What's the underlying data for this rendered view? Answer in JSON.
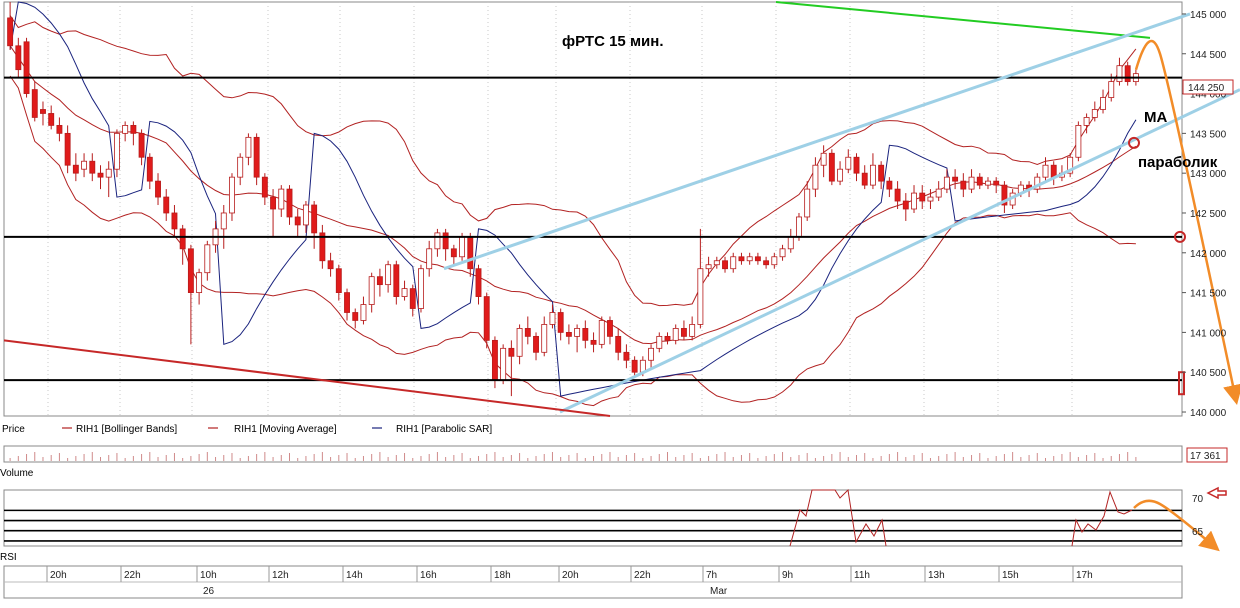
{
  "chart_data": {
    "type": "candlestick",
    "title": "фРТС   15 мин.",
    "price_panel": {
      "ylim": [
        139950,
        145150
      ],
      "y_ticks": [
        "145 000",
        "144 500",
        "144 000",
        "143 500",
        "143 000",
        "142 500",
        "142 000",
        "141 500",
        "141 000",
        "140 500",
        "140 000"
      ],
      "y_tick_values": [
        145000,
        144500,
        144000,
        143500,
        143000,
        142500,
        142000,
        141500,
        141000,
        140500,
        140000
      ],
      "last_price_label": "144 250",
      "last_price": 144250,
      "legend": [
        {
          "name": "Price",
          "color": "#000000"
        },
        {
          "name": "RIH1 [Bollinger Bands]",
          "color": "#b22222"
        },
        {
          "name": "RIH1 [Moving Average]",
          "color": "#b22222"
        },
        {
          "name": "RIH1 [Parabolic SAR]",
          "color": "#1a237e"
        }
      ],
      "support_resistance": [
        144200,
        142200,
        140400
      ],
      "annotations": [
        {
          "text": "MA"
        },
        {
          "text": "параболик"
        }
      ],
      "candles": [
        [
          144950,
          144600,
          145150,
          144550
        ],
        [
          144600,
          144300,
          144700,
          144200
        ],
        [
          144650,
          144000,
          144700,
          143950
        ],
        [
          144050,
          143700,
          144150,
          143650
        ],
        [
          143800,
          143750,
          143900,
          143600
        ],
        [
          143750,
          143600,
          143850,
          143550
        ],
        [
          143600,
          143500,
          143700,
          143400
        ],
        [
          143500,
          143100,
          143600,
          143000
        ],
        [
          143100,
          143000,
          143250,
          142900
        ],
        [
          143050,
          143150,
          143250,
          142950
        ],
        [
          143150,
          143000,
          143250,
          142900
        ],
        [
          143000,
          142950,
          143100,
          142800
        ],
        [
          142950,
          143050,
          143150,
          142700
        ],
        [
          143050,
          143500,
          143550,
          142950
        ],
        [
          143500,
          143600,
          143650,
          143400
        ],
        [
          143600,
          143500,
          143650,
          143350
        ],
        [
          143500,
          143200,
          143550,
          143100
        ],
        [
          143200,
          142900,
          143250,
          142800
        ],
        [
          142900,
          142700,
          143000,
          142600
        ],
        [
          142700,
          142500,
          142800,
          142400
        ],
        [
          142500,
          142300,
          142600,
          142200
        ],
        [
          142300,
          142050,
          142350,
          141850
        ],
        [
          142050,
          141500,
          142100,
          140850
        ],
        [
          141500,
          141750,
          141800,
          141350
        ],
        [
          141750,
          142100,
          142150,
          141650
        ],
        [
          142100,
          142300,
          142400,
          142000
        ],
        [
          142300,
          142500,
          142600,
          142050
        ],
        [
          142500,
          142950,
          143000,
          142400
        ],
        [
          142950,
          143200,
          143250,
          142850
        ],
        [
          143200,
          143450,
          143500,
          143100
        ],
        [
          143450,
          142950,
          143500,
          142850
        ],
        [
          142950,
          142700,
          143000,
          142600
        ],
        [
          142700,
          142550,
          142800,
          142200
        ],
        [
          142550,
          142800,
          142850,
          142450
        ],
        [
          142800,
          142450,
          142850,
          142350
        ],
        [
          142450,
          142350,
          142550,
          142200
        ],
        [
          142350,
          142600,
          142650,
          142250
        ],
        [
          142600,
          142250,
          142650,
          142050
        ],
        [
          142250,
          141900,
          142350,
          141800
        ],
        [
          141900,
          141800,
          142000,
          141700
        ],
        [
          141800,
          141500,
          141850,
          141400
        ],
        [
          141500,
          141250,
          141550,
          141150
        ],
        [
          141250,
          141150,
          141300,
          141050
        ],
        [
          141150,
          141350,
          141450,
          141100
        ],
        [
          141350,
          141700,
          141750,
          141250
        ],
        [
          141700,
          141600,
          141800,
          141450
        ],
        [
          141600,
          141850,
          141900,
          141500
        ],
        [
          141850,
          141450,
          141900,
          141350
        ],
        [
          141450,
          141550,
          141650,
          141400
        ],
        [
          141550,
          141300,
          141600,
          141200
        ],
        [
          141300,
          141800,
          141850,
          141250
        ],
        [
          141800,
          142050,
          142150,
          141700
        ],
        [
          142050,
          142250,
          142300,
          141950
        ],
        [
          142250,
          142050,
          142300,
          141900
        ],
        [
          142050,
          141950,
          142100,
          141850
        ],
        [
          141950,
          142200,
          142250,
          141900
        ],
        [
          142200,
          141800,
          142250,
          141700
        ],
        [
          141800,
          141450,
          141850,
          141350
        ],
        [
          141450,
          140900,
          141500,
          140800
        ],
        [
          140900,
          140400,
          140950,
          140300
        ],
        [
          140400,
          140800,
          140850,
          140350
        ],
        [
          140800,
          140700,
          140900,
          140200
        ],
        [
          140700,
          141050,
          141100,
          140600
        ],
        [
          141050,
          140950,
          141200,
          140850
        ],
        [
          140950,
          140750,
          141000,
          140650
        ],
        [
          140750,
          141100,
          141200,
          140700
        ],
        [
          141100,
          141250,
          141350,
          141050
        ],
        [
          141250,
          141000,
          141300,
          140900
        ],
        [
          141000,
          140950,
          141100,
          140850
        ],
        [
          140950,
          141050,
          141100,
          140750
        ],
        [
          141050,
          140900,
          141150,
          140800
        ],
        [
          140900,
          140850,
          141000,
          140750
        ],
        [
          140850,
          141150,
          141200,
          140800
        ],
        [
          141150,
          140950,
          141200,
          140850
        ],
        [
          140950,
          140750,
          141050,
          140650
        ],
        [
          140750,
          140650,
          140850,
          140550
        ],
        [
          140650,
          140500,
          140700,
          140450
        ],
        [
          140500,
          140650,
          140700,
          140450
        ],
        [
          140650,
          140800,
          140850,
          140550
        ],
        [
          140800,
          140950,
          141000,
          140750
        ],
        [
          140950,
          140900,
          141000,
          140850
        ],
        [
          140900,
          141050,
          141100,
          140850
        ],
        [
          141050,
          140950,
          141150,
          140900
        ],
        [
          140950,
          141100,
          141200,
          140900
        ],
        [
          141100,
          141800,
          142300,
          141050
        ],
        [
          141800,
          141850,
          141950,
          141700
        ],
        [
          141850,
          141900,
          141950,
          141800
        ],
        [
          141900,
          141800,
          141950,
          141750
        ],
        [
          141800,
          141950,
          142000,
          141750
        ],
        [
          141950,
          141900,
          142000,
          141850
        ],
        [
          141900,
          141950,
          142000,
          141850
        ],
        [
          141950,
          141900,
          142000,
          141850
        ],
        [
          141900,
          141850,
          141950,
          141800
        ],
        [
          141850,
          141950,
          142000,
          141800
        ],
        [
          141950,
          142050,
          142100,
          141900
        ],
        [
          142050,
          142200,
          142300,
          142000
        ],
        [
          142200,
          142450,
          142500,
          142150
        ],
        [
          142450,
          142800,
          142900,
          142400
        ],
        [
          142800,
          143100,
          143200,
          142700
        ],
        [
          143100,
          143250,
          143350,
          142950
        ],
        [
          143250,
          142900,
          143300,
          142850
        ],
        [
          142900,
          143050,
          143150,
          142850
        ],
        [
          143050,
          143200,
          143300,
          143000
        ],
        [
          143200,
          143000,
          143250,
          142900
        ],
        [
          143000,
          142850,
          143100,
          142800
        ],
        [
          142850,
          143100,
          143250,
          142800
        ],
        [
          143100,
          142900,
          143150,
          142800
        ],
        [
          142900,
          142800,
          142950,
          142700
        ],
        [
          142800,
          142650,
          142900,
          142550
        ],
        [
          142650,
          142550,
          142750,
          142400
        ],
        [
          142550,
          142750,
          142850,
          142500
        ],
        [
          142750,
          142650,
          142850,
          142550
        ],
        [
          142650,
          142700,
          142800,
          142550
        ],
        [
          142700,
          142800,
          142900,
          142650
        ],
        [
          142800,
          142950,
          143050,
          142750
        ],
        [
          142950,
          142900,
          143050,
          142800
        ],
        [
          142900,
          142800,
          143000,
          142700
        ],
        [
          142800,
          142950,
          143050,
          142750
        ],
        [
          142950,
          142850,
          143000,
          142800
        ],
        [
          142850,
          142900,
          142950,
          142800
        ],
        [
          142900,
          142850,
          142950,
          142750
        ],
        [
          142850,
          142600,
          142900,
          142500
        ],
        [
          142600,
          142750,
          142800,
          142550
        ],
        [
          142750,
          142850,
          142900,
          142700
        ],
        [
          142850,
          142800,
          142900,
          142700
        ],
        [
          142800,
          142950,
          143000,
          142750
        ],
        [
          142950,
          143100,
          143200,
          142900
        ],
        [
          143100,
          142950,
          143150,
          142850
        ],
        [
          142950,
          143000,
          143100,
          142900
        ],
        [
          143000,
          143200,
          143250,
          142950
        ],
        [
          143200,
          143600,
          143650,
          143150
        ],
        [
          143600,
          143700,
          143750,
          143500
        ],
        [
          143700,
          143800,
          143900,
          143650
        ],
        [
          143800,
          143950,
          144050,
          143750
        ],
        [
          143950,
          144150,
          144250,
          143900
        ],
        [
          144150,
          144350,
          144450,
          144100
        ],
        [
          144350,
          144150,
          144400,
          144100
        ],
        [
          144150,
          144250,
          144300,
          144100
        ]
      ]
    },
    "volume_panel": {
      "label": "Volume",
      "last_value_label": "17 361"
    },
    "rsi_panel": {
      "label": "RSI",
      "y_ticks": [
        "70",
        "65"
      ],
      "levels": [
        70,
        68,
        66,
        64
      ]
    },
    "x_axis": {
      "ticks": [
        "20h",
        "22h",
        "10h",
        "12h",
        "14h",
        "16h",
        "18h",
        "20h",
        "22h",
        "7h",
        "9h",
        "11h",
        "13h",
        "15h",
        "17h"
      ],
      "date_labels": [
        "26",
        "Mar"
      ]
    }
  }
}
